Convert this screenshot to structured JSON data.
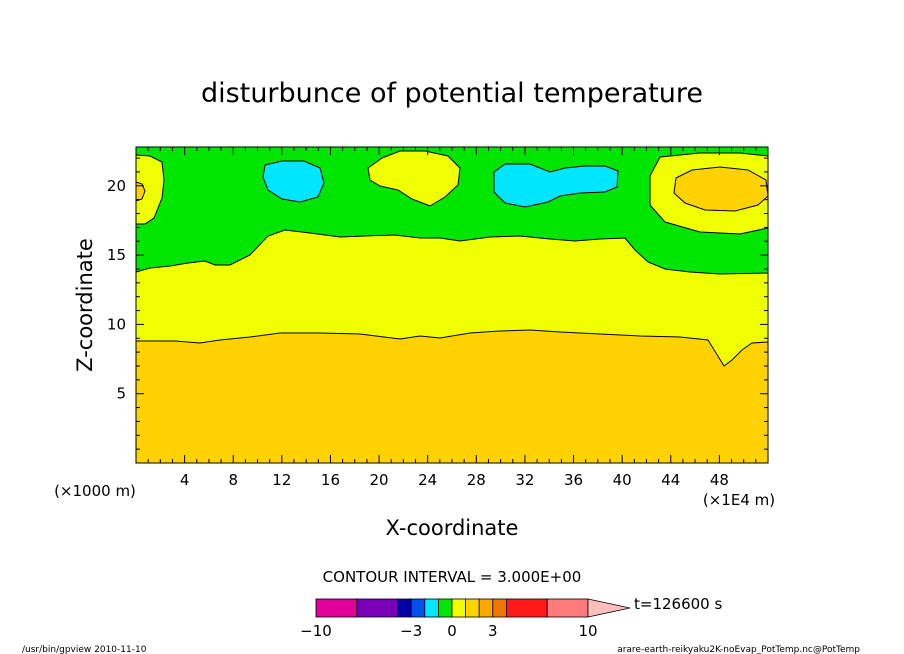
{
  "chart_data": {
    "type": "heatmap",
    "title": "disturbunce of potential temperature",
    "xlabel": "X-coordinate",
    "ylabel": "Z-coordinate",
    "x_unit_left": "(×1000 m)",
    "x_unit_right": "(×1E4 m)",
    "xlim": [
      0,
      52000
    ],
    "ylim": [
      0,
      22800
    ],
    "x_ticks": [
      4,
      8,
      12,
      16,
      20,
      24,
      28,
      32,
      36,
      40,
      44,
      48
    ],
    "y_ticks": [
      5,
      10,
      15,
      20
    ],
    "contour_interval": "CONTOUR INTERVAL = 3.000E+00",
    "time_label": "t=126600 s",
    "colorbar": {
      "tick_labels": [
        "−10",
        "−3",
        "0",
        "3",
        "10"
      ],
      "segments": [
        {
          "from": -10,
          "to": -7,
          "color": "#e2019b"
        },
        {
          "from": -7,
          "to": -4,
          "color": "#7a00b8"
        },
        {
          "from": -4,
          "to": -3,
          "color": "#0000a8"
        },
        {
          "from": -3,
          "to": -2,
          "color": "#0050f0"
        },
        {
          "from": -2,
          "to": -1,
          "color": "#00e6ff"
        },
        {
          "from": -1,
          "to": 0,
          "color": "#00e600"
        },
        {
          "from": 0,
          "to": 1,
          "color": "#f0ff00"
        },
        {
          "from": 1,
          "to": 2,
          "color": "#ffd200"
        },
        {
          "from": 2,
          "to": 3,
          "color": "#ffa800"
        },
        {
          "from": 3,
          "to": 4,
          "color": "#f07800"
        },
        {
          "from": 4,
          "to": 7,
          "color": "#ff1a1a"
        },
        {
          "from": 7,
          "to": 10,
          "color": "#ff7a7a"
        }
      ],
      "overflow_color": "#ffbebe"
    },
    "regions": [
      {
        "level": "1 to 2",
        "color": "#ffd200",
        "description": "lower layer below z≈9 km"
      },
      {
        "level": "0 to 1",
        "color": "#f0ff00",
        "description": "middle layer z≈9–16 km"
      },
      {
        "level": "-1 to 0",
        "color": "#00e600",
        "description": "upper layer above z≈14–16 km"
      },
      {
        "level": "-2 to -1",
        "color": "#00e6ff",
        "description": "cells near x≈12 km and x≈30–38 km, z≈20 km"
      },
      {
        "level": "1 to 2",
        "color": "#ffd200",
        "description": "cell near x≈47 km, z≈20 km"
      }
    ]
  },
  "footer": {
    "left": "/usr/bin/gpview  2010-11-10",
    "right": "arare-earth-reikyaku2K-noEvap_PotTemp.nc@PotTemp"
  }
}
